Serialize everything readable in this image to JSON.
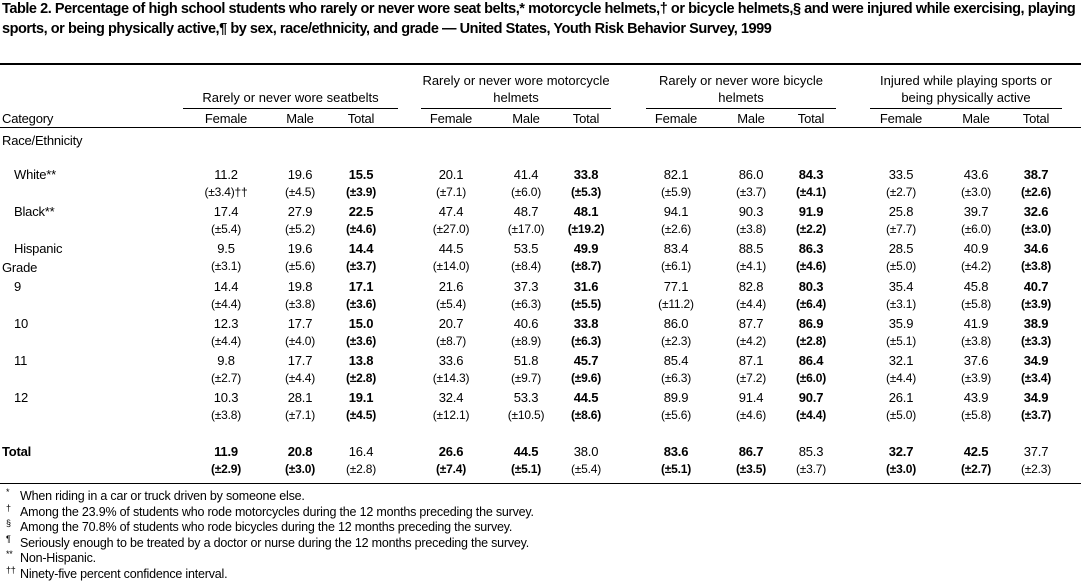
{
  "title": "Table 2. Percentage of high school students who rarely or never wore seat belts,* motorcycle helmets,† or bicycle helmets,§ and were injured while exercising, playing sports, or being physically active,¶ by sex, race/ethnicity, and grade — United States, Youth Risk Behavior Survey, 1999",
  "table": {
    "category_header": "Category",
    "groups": [
      "Rarely or never wore seatbelts",
      "Rarely or never wore motorcycle helmets",
      "Rarely or never wore bicycle helmets",
      "Injured while playing sports or being physically active"
    ],
    "subheaders": [
      "Female",
      "Male",
      "Total"
    ],
    "sections": [
      {
        "label": "Race/Ethnicity",
        "rows": [
          {
            "label": "White**",
            "values": [
              "11.2",
              "19.6",
              "15.5",
              "20.1",
              "41.4",
              "33.8",
              "82.1",
              "86.0",
              "84.3",
              "33.5",
              "43.6",
              "38.7"
            ],
            "ci": [
              "(±3.4)††",
              "(±4.5)",
              "(±3.9)",
              "(±7.1)",
              "(±6.0)",
              "(±5.3)",
              "(±5.9)",
              "(±3.7)",
              "(±4.1)",
              "(±2.7)",
              "(±3.0)",
              "(±2.6)"
            ]
          },
          {
            "label": "Black**",
            "values": [
              "17.4",
              "27.9",
              "22.5",
              "47.4",
              "48.7",
              "48.1",
              "94.1",
              "90.3",
              "91.9",
              "25.8",
              "39.7",
              "32.6"
            ],
            "ci": [
              "(±5.4)",
              "(±5.2)",
              "(±4.6)",
              "(±27.0)",
              "(±17.0)",
              "(±19.2)",
              "(±2.6)",
              "(±3.8)",
              "(±2.2)",
              "(±7.7)",
              "(±6.0)",
              "(±3.0)"
            ]
          },
          {
            "label": "Hispanic",
            "values": [
              "9.5",
              "19.6",
              "14.4",
              "44.5",
              "53.5",
              "49.9",
              "83.4",
              "88.5",
              "86.3",
              "28.5",
              "40.9",
              "34.6"
            ],
            "ci": [
              "(±3.1)",
              "(±5.6)",
              "(±3.7)",
              "(±14.0)",
              "(±8.4)",
              "(±8.7)",
              "(±6.1)",
              "(±4.1)",
              "(±4.6)",
              "(±5.0)",
              "(±4.2)",
              "(±3.8)"
            ]
          }
        ]
      },
      {
        "label": "Grade",
        "rows": [
          {
            "label": "9",
            "values": [
              "14.4",
              "19.8",
              "17.1",
              "21.6",
              "37.3",
              "31.6",
              "77.1",
              "82.8",
              "80.3",
              "35.4",
              "45.8",
              "40.7"
            ],
            "ci": [
              "(±4.4)",
              "(±3.8)",
              "(±3.6)",
              "(±5.4)",
              "(±6.3)",
              "(±5.5)",
              "(±11.2)",
              "(±4.4)",
              "(±6.4)",
              "(±3.1)",
              "(±5.8)",
              "(±3.9)"
            ]
          },
          {
            "label": "10",
            "values": [
              "12.3",
              "17.7",
              "15.0",
              "20.7",
              "40.6",
              "33.8",
              "86.0",
              "87.7",
              "86.9",
              "35.9",
              "41.9",
              "38.9"
            ],
            "ci": [
              "(±4.4)",
              "(±4.0)",
              "(±3.6)",
              "(±8.7)",
              "(±8.9)",
              "(±6.3)",
              "(±2.3)",
              "(±4.2)",
              "(±2.8)",
              "(±5.1)",
              "(±3.8)",
              "(±3.3)"
            ]
          },
          {
            "label": "11",
            "values": [
              "9.8",
              "17.7",
              "13.8",
              "33.6",
              "51.8",
              "45.7",
              "85.4",
              "87.1",
              "86.4",
              "32.1",
              "37.6",
              "34.9"
            ],
            "ci": [
              "(±2.7)",
              "(±4.4)",
              "(±2.8)",
              "(±14.3)",
              "(±9.7)",
              "(±9.6)",
              "(±6.3)",
              "(±7.2)",
              "(±6.0)",
              "(±4.4)",
              "(±3.9)",
              "(±3.4)"
            ]
          },
          {
            "label": "12",
            "values": [
              "10.3",
              "28.1",
              "19.1",
              "32.4",
              "53.3",
              "44.5",
              "89.9",
              "91.4",
              "90.7",
              "26.1",
              "43.9",
              "34.9"
            ],
            "ci": [
              "(±3.8)",
              "(±7.1)",
              "(±4.5)",
              "(±12.1)",
              "(±10.5)",
              "(±8.6)",
              "(±5.6)",
              "(±4.6)",
              "(±4.4)",
              "(±5.0)",
              "(±5.8)",
              "(±3.7)"
            ]
          }
        ]
      }
    ],
    "total": {
      "label": "Total",
      "values": [
        "11.9",
        "20.8",
        "16.4",
        "26.6",
        "44.5",
        "38.0",
        "83.6",
        "86.7",
        "85.3",
        "32.7",
        "42.5",
        "37.7"
      ],
      "ci": [
        "(±2.9)",
        "(±3.0)",
        "(±2.8)",
        "(±7.4)",
        "(±5.1)",
        "(±5.4)",
        "(±5.1)",
        "(±3.5)",
        "(±3.7)",
        "(±3.0)",
        "(±2.7)",
        "(±2.3)"
      ]
    }
  },
  "footnotes": [
    {
      "symbol": "*",
      "text": "When riding in a car or truck driven by someone else."
    },
    {
      "symbol": "†",
      "text": "Among the 23.9% of students who rode motorcycles during the 12 months preceding the survey."
    },
    {
      "symbol": "§",
      "text": "Among the 70.8% of students who rode bicycles during the 12 months preceding the survey."
    },
    {
      "symbol": "¶",
      "text": "Seriously enough to be treated by a doctor or nurse during the 12 months preceding the survey."
    },
    {
      "symbol": "**",
      "text": "Non-Hispanic."
    },
    {
      "symbol": "††",
      "text": "Ninety-five percent confidence interval."
    }
  ]
}
